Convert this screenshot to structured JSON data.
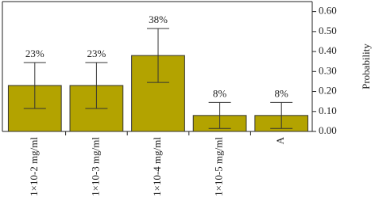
{
  "chart_data": {
    "type": "bar",
    "y_label": "Probability",
    "categories": [
      "1×10-2 mg/ml",
      "1×10-3 mg/ml",
      "1×10-4 mg/ml",
      "1×10-5 mg/ml",
      "A"
    ],
    "values": [
      0.23,
      0.23,
      0.38,
      0.08,
      0.08
    ],
    "value_labels": [
      "23%",
      "23%",
      "38%",
      "8%",
      "8%"
    ],
    "errors": [
      0.115,
      0.115,
      0.135,
      0.065,
      0.065
    ],
    "color": "#b3a300",
    "ylim": [
      0,
      0.65
    ],
    "yticks": [
      {
        "value": 0,
        "label": "0.00"
      },
      {
        "value": 0.1,
        "label": "0.10"
      },
      {
        "value": 0.2,
        "label": "0.20"
      },
      {
        "value": 0.3,
        "label": "0.30"
      },
      {
        "value": 0.4,
        "label": "0.40"
      },
      {
        "value": 0.5,
        "label": "0.50"
      },
      {
        "value": 0.6,
        "label": "0.60"
      }
    ],
    "y_axis_side": "right"
  }
}
